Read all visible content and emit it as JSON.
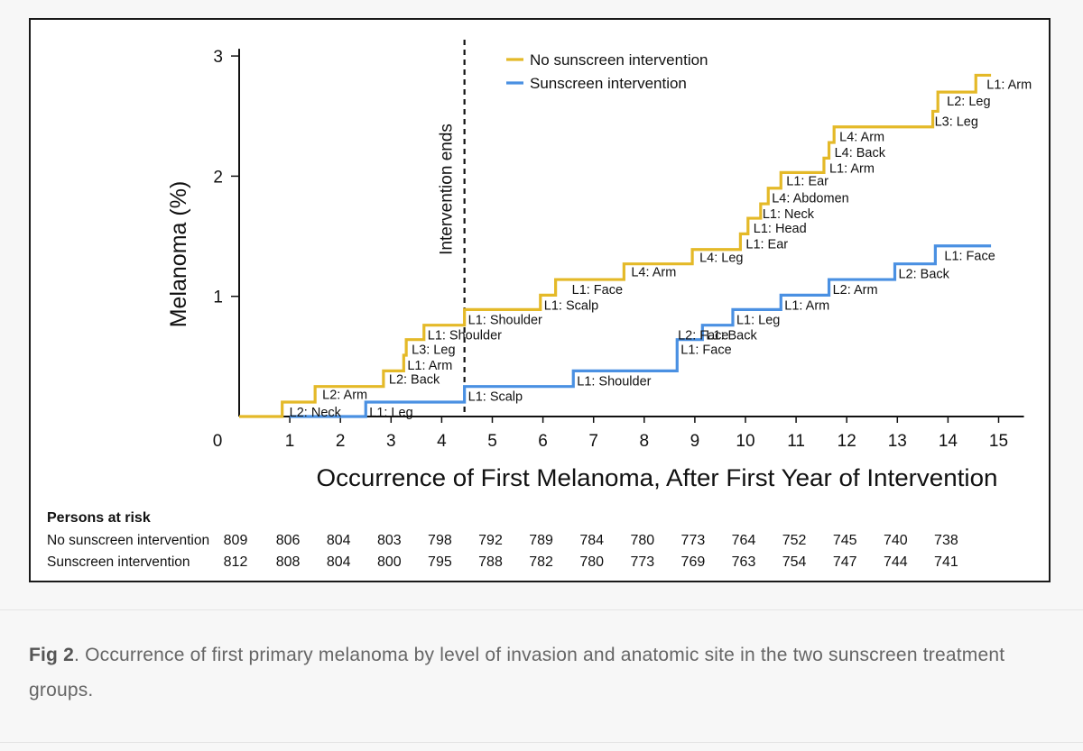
{
  "figure": {
    "caption_label": "Fig 2",
    "caption_text": ". Occurrence of first primary melanoma by level of invasion and anatomic site in the two sunscreen treatment groups."
  },
  "chart_data": {
    "type": "line",
    "subtype": "step",
    "xlabel": "Occurrence of First Melanoma, After First Year of Intervention",
    "ylabel": "Melanoma (%)",
    "xlim": [
      0,
      15.5
    ],
    "ylim": [
      0,
      3
    ],
    "xticks": [
      "0",
      "1",
      "2",
      "3",
      "4",
      "5",
      "6",
      "7",
      "8",
      "9",
      "10",
      "11",
      "12",
      "13",
      "14",
      "15"
    ],
    "yticks": [
      "1",
      "2",
      "3"
    ],
    "grid": false,
    "legend_position": "top-center",
    "vline": {
      "x": 4.45,
      "label": "Intervention ends"
    },
    "series": [
      {
        "name": "No sunscreen intervention",
        "color": "#E4B928",
        "steps": [
          {
            "x": 0.0,
            "y": 0.0
          },
          {
            "x": 0.85,
            "y": 0.12,
            "label": "L2: Neck"
          },
          {
            "x": 1.5,
            "y": 0.25,
            "label": "L2: Arm"
          },
          {
            "x": 2.85,
            "y": 0.38,
            "label": "L2: Back"
          },
          {
            "x": 3.25,
            "y": 0.51,
            "label": "L1: Arm"
          },
          {
            "x": 3.3,
            "y": 0.64,
            "label": "L3: Leg"
          },
          {
            "x": 3.65,
            "y": 0.76,
            "label": "L1: Shoulder"
          },
          {
            "x": 4.45,
            "y": 0.89,
            "label": "L1: Shoulder"
          },
          {
            "x": 5.95,
            "y": 1.01,
            "label": "L1: Scalp"
          },
          {
            "x": 6.25,
            "y": 1.14,
            "label": "L1: Face"
          },
          {
            "x": 7.6,
            "y": 1.27,
            "label": "L4: Arm"
          },
          {
            "x": 8.95,
            "y": 1.39,
            "label": "L4: Leg"
          },
          {
            "x": 9.9,
            "y": 1.52,
            "label": "L1: Ear"
          },
          {
            "x": 10.05,
            "y": 1.65,
            "label": "L1: Head"
          },
          {
            "x": 10.3,
            "y": 1.77,
            "label": "L1: Neck"
          },
          {
            "x": 10.45,
            "y": 1.9,
            "label": "L4: Abdomen"
          },
          {
            "x": 10.7,
            "y": 2.03,
            "label": "L1: Ear"
          },
          {
            "x": 11.55,
            "y": 2.15,
            "label": "L1: Arm"
          },
          {
            "x": 11.65,
            "y": 2.28,
            "label": "L4: Back"
          },
          {
            "x": 11.75,
            "y": 2.41,
            "label": "L4: Arm"
          },
          {
            "x": 13.7,
            "y": 2.54,
            "label": "L3: Leg"
          },
          {
            "x": 13.8,
            "y": 2.7,
            "label": "L2: Leg"
          },
          {
            "x": 14.55,
            "y": 2.84,
            "label": "L1: Arm"
          }
        ],
        "end_x": 14.85
      },
      {
        "name": "Sunscreen intervention",
        "color": "#4A90E2",
        "steps": [
          {
            "x": 1.0,
            "y": 0.0
          },
          {
            "x": 2.5,
            "y": 0.12,
            "label": "L1: Leg"
          },
          {
            "x": 4.45,
            "y": 0.25,
            "label": "L1: Scalp"
          },
          {
            "x": 6.6,
            "y": 0.38,
            "label": "L1: Shoulder"
          },
          {
            "x": 8.65,
            "y": 0.64,
            "label": "L1: Face"
          },
          {
            "x": 8.7,
            "y": 0.64,
            "label": "L2: Face"
          },
          {
            "x": 9.15,
            "y": 0.76,
            "label": "L1: Back"
          },
          {
            "x": 9.75,
            "y": 0.89,
            "label": "L1: Leg"
          },
          {
            "x": 10.7,
            "y": 1.01,
            "label": "L1: Arm"
          },
          {
            "x": 11.65,
            "y": 1.14,
            "label": "L2: Arm"
          },
          {
            "x": 12.95,
            "y": 1.27,
            "label": "L2: Back"
          },
          {
            "x": 13.75,
            "y": 1.42,
            "label": "L1: Face"
          }
        ],
        "end_x": 14.85
      }
    ],
    "risk_table": {
      "title": "Persons at risk",
      "rows": [
        {
          "label": "No sunscreen intervention",
          "values": [
            "809",
            "806",
            "804",
            "803",
            "798",
            "792",
            "789",
            "784",
            "780",
            "773",
            "764",
            "752",
            "745",
            "740",
            "738"
          ]
        },
        {
          "label": "Sunscreen intervention",
          "values": [
            "812",
            "808",
            "804",
            "800",
            "795",
            "788",
            "782",
            "780",
            "773",
            "769",
            "763",
            "754",
            "747",
            "744",
            "741"
          ]
        }
      ]
    }
  }
}
